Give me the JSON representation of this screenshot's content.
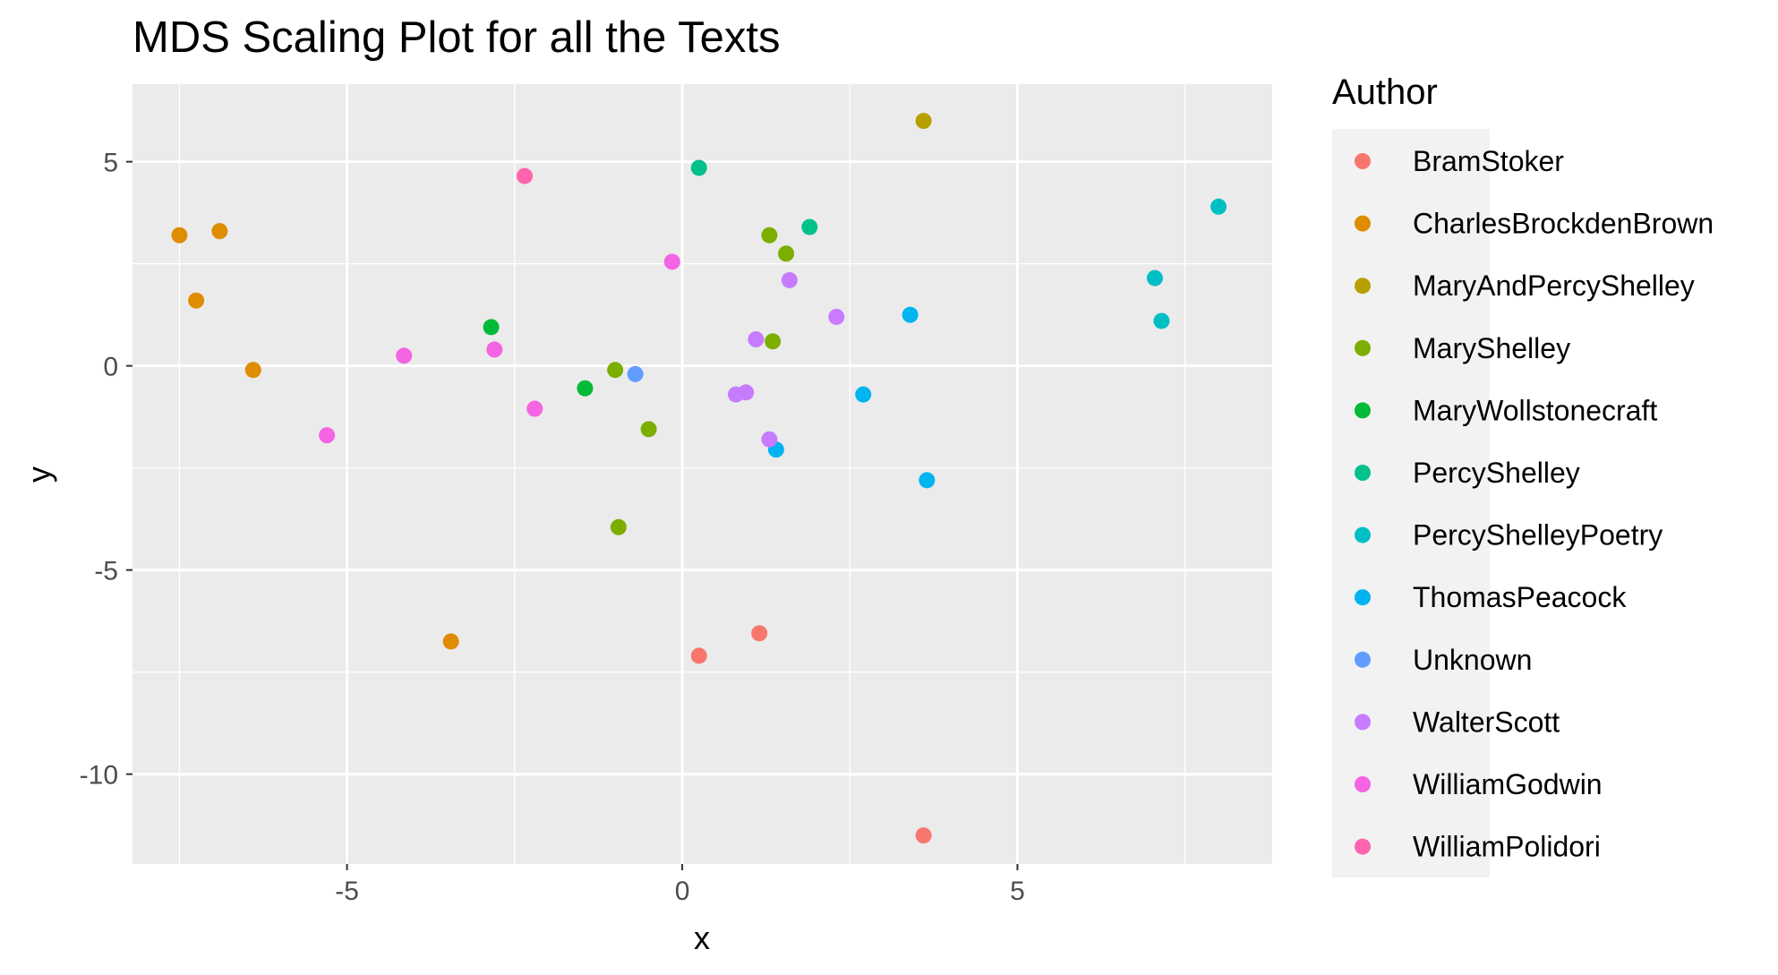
{
  "chart_data": {
    "type": "scatter",
    "title": "MDS Scaling Plot for all the Texts",
    "xlabel": "x",
    "ylabel": "y",
    "xlim": [
      -8.2,
      8.8
    ],
    "ylim": [
      -12.2,
      6.9
    ],
    "x_ticks": [
      -5,
      0,
      5
    ],
    "y_ticks": [
      5,
      0,
      -5,
      -10
    ],
    "x_tick_labels": [
      "-5",
      "0",
      "5"
    ],
    "y_tick_labels": [
      "5",
      "0",
      "-5",
      "-10"
    ],
    "grid": true,
    "legend": {
      "title": "Author",
      "position": "right"
    },
    "series": [
      {
        "name": "BramStoker",
        "color": "#F8766D",
        "points": [
          [
            0.25,
            -7.1
          ],
          [
            1.15,
            -6.55
          ],
          [
            3.6,
            -11.5
          ]
        ]
      },
      {
        "name": "CharlesBrockdenBrown",
        "color": "#DE8C00",
        "points": [
          [
            -7.5,
            3.2
          ],
          [
            -6.9,
            3.3
          ],
          [
            -7.25,
            1.6
          ],
          [
            -6.4,
            -0.1
          ],
          [
            -3.45,
            -6.75
          ]
        ]
      },
      {
        "name": "MaryAndPercyShelley",
        "color": "#B79F00",
        "points": [
          [
            3.6,
            6.0
          ]
        ]
      },
      {
        "name": "MaryShelley",
        "color": "#7CAE00",
        "points": [
          [
            1.3,
            3.2
          ],
          [
            1.55,
            2.75
          ],
          [
            1.35,
            0.6
          ],
          [
            -1.0,
            -0.1
          ],
          [
            -0.5,
            -1.55
          ],
          [
            -0.95,
            -3.95
          ]
        ]
      },
      {
        "name": "MaryWollstonecraft",
        "color": "#00BA38",
        "points": [
          [
            -2.85,
            0.95
          ],
          [
            -1.45,
            -0.55
          ]
        ]
      },
      {
        "name": "PercyShelley",
        "color": "#00C08B",
        "points": [
          [
            0.25,
            4.85
          ],
          [
            1.9,
            3.4
          ]
        ]
      },
      {
        "name": "PercyShelleyPoetry",
        "color": "#00BFC4",
        "points": [
          [
            8.0,
            3.9
          ],
          [
            7.05,
            2.15
          ],
          [
            7.15,
            1.1
          ]
        ]
      },
      {
        "name": "ThomasPeacock",
        "color": "#00B4F0",
        "points": [
          [
            3.4,
            1.25
          ],
          [
            2.7,
            -0.7
          ],
          [
            3.65,
            -2.8
          ],
          [
            1.4,
            -2.05
          ]
        ]
      },
      {
        "name": "Unknown",
        "color": "#619CFF",
        "points": [
          [
            -0.7,
            -0.2
          ]
        ]
      },
      {
        "name": "WalterScott",
        "color": "#C77CFF",
        "points": [
          [
            1.6,
            2.1
          ],
          [
            2.3,
            1.2
          ],
          [
            1.1,
            0.65
          ],
          [
            0.8,
            -0.7
          ],
          [
            0.95,
            -0.65
          ],
          [
            1.3,
            -1.8
          ]
        ]
      },
      {
        "name": "WilliamGodwin",
        "color": "#F564E3",
        "points": [
          [
            -0.15,
            2.55
          ],
          [
            -4.15,
            0.25
          ],
          [
            -2.8,
            0.4
          ],
          [
            -2.2,
            -1.05
          ],
          [
            -5.3,
            -1.7
          ]
        ]
      },
      {
        "name": "WilliamPolidori",
        "color": "#FF64B0",
        "points": [
          [
            -2.35,
            4.65
          ]
        ]
      }
    ]
  }
}
